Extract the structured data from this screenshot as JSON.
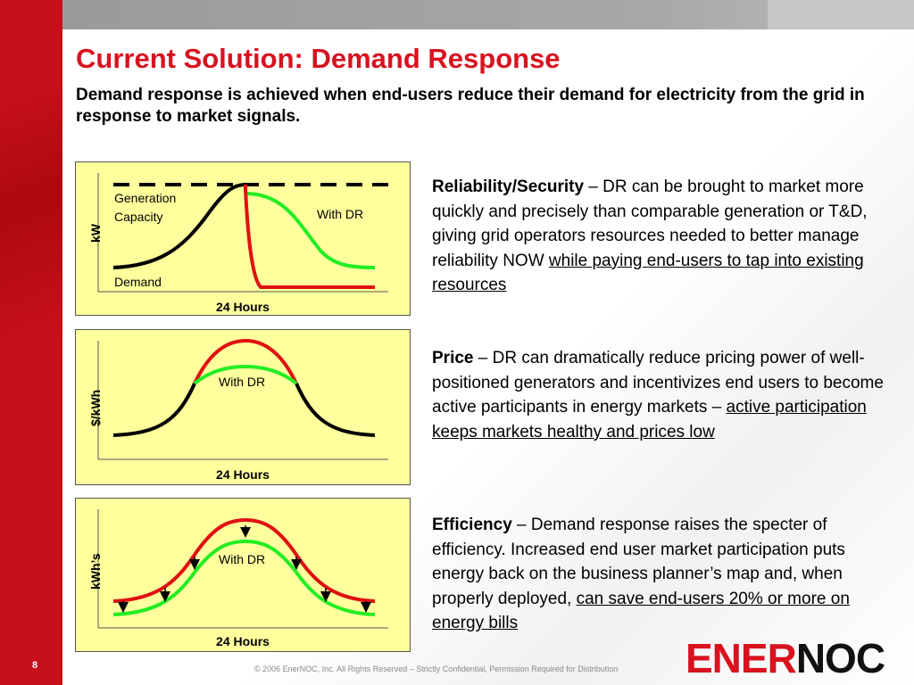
{
  "slide": {
    "title": "Current Solution: Demand Response",
    "subtitle": "Demand response is achieved when end-users reduce their demand for electricity from the grid in response to market signals.",
    "page_number": "8",
    "footer": "© 2006 EnerNOC, Inc. All Rights Reserved – Strictly Confidential, Permission Required for Distribution",
    "logo_part1": "ENER",
    "logo_part2": "NOC"
  },
  "colors": {
    "brand_red": "#d8121f",
    "chart_bg": "#ffff9e",
    "curve_black": "#000000",
    "curve_red": "#e01010",
    "curve_green": "#22ee22"
  },
  "charts": [
    {
      "ylabel": "kW",
      "xlabel": "24 Hours",
      "labels": {
        "capacity": "Generation\nCapacity",
        "capacity_1": "Generation",
        "capacity_2": "Capacity",
        "with_dr": "With DR",
        "demand": "Demand"
      }
    },
    {
      "ylabel": "$/kWh",
      "xlabel": "24 Hours",
      "labels": {
        "with_dr": "With DR"
      }
    },
    {
      "ylabel": "kWh’s",
      "xlabel": "24 Hours",
      "labels": {
        "with_dr": "With DR"
      }
    }
  ],
  "descriptions": [
    {
      "heading": "Reliability/Security",
      "text": " – DR can be brought to market more quickly and precisely than comparable generation or T&D, giving grid operators resources needed to better manage reliability NOW ",
      "underlined": "while paying end-users to tap into existing resources"
    },
    {
      "heading": "Price",
      "text": " – DR can dramatically reduce pricing power of well-positioned generators and incentivizes end users to become active participants in energy markets – ",
      "underlined": "active participation keeps markets healthy and prices low"
    },
    {
      "heading": "Efficiency",
      "text": " – Demand response raises the specter of efficiency. Increased end user market participation puts energy back on the business planner’s map and, when properly deployed, ",
      "underlined": "can save end-users 20% or more on energy bills"
    }
  ]
}
